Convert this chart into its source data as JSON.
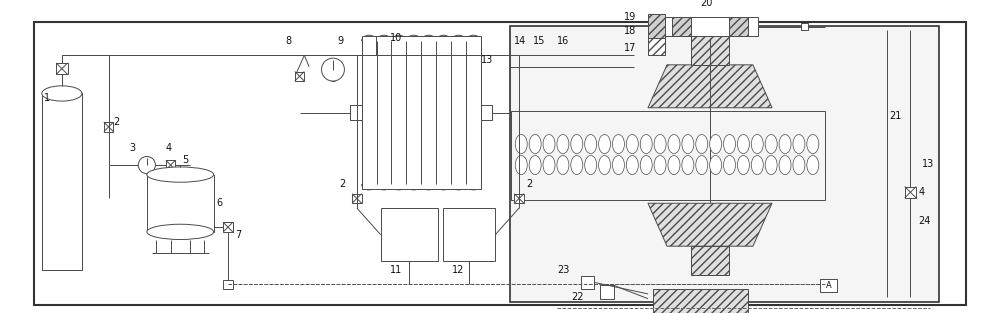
{
  "bg_color": "#ffffff",
  "line_color": "#4a4a4a",
  "fig_width": 10.0,
  "fig_height": 3.13,
  "dpi": 100
}
